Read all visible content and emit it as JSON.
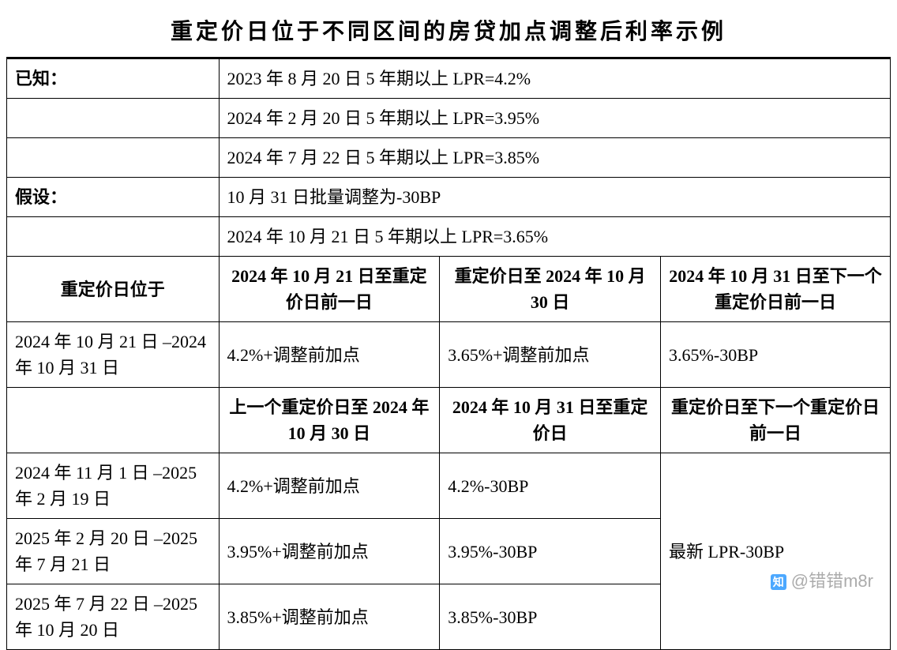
{
  "title": "重定价日位于不同区间的房贷加点调整后利率示例",
  "known": {
    "label": "已知：",
    "rows": [
      "2023 年 8 月 20 日 5 年期以上 LPR=4.2%",
      "2024 年 2 月 20 日 5 年期以上 LPR=3.95%",
      "2024 年 7 月 22 日 5 年期以上 LPR=3.85%"
    ]
  },
  "assume": {
    "label": "假设：",
    "rows": [
      "10 月 31 日批量调整为-30BP",
      "2024 年 10 月 21 日 5 年期以上 LPR=3.65%"
    ]
  },
  "section1": {
    "header": {
      "c1": "重定价日位于",
      "c2": "2024 年 10 月 21 日至重定价日前一日",
      "c3": "重定价日至 2024 年 10 月 30 日",
      "c4": "2024 年 10 月 31 日至下一个重定价日前一日"
    },
    "row1": {
      "c1": "2024 年 10 月 21 日 –2024 年 10 月 31 日",
      "c2": "4.2%+调整前加点",
      "c3": "3.65%+调整前加点",
      "c4": "3.65%-30BP"
    }
  },
  "section2": {
    "header": {
      "c2": "上一个重定价日至 2024 年 10 月 30 日",
      "c3": "2024 年 10 月 31 日至重定价日",
      "c4": "重定价日至下一个重定价日前一日"
    },
    "rows": [
      {
        "c1": "2024 年 11 月 1 日 –2025 年 2 月 19 日",
        "c2": "4.2%+调整前加点",
        "c3": "4.2%-30BP"
      },
      {
        "c1": "2025 年 2 月 20 日 –2025 年 7 月 21 日",
        "c2": "3.95%+调整前加点",
        "c3": "3.95%-30BP"
      },
      {
        "c1": "2025 年 7 月 22 日 –2025 年 10 月 20 日",
        "c2": "3.85%+调整前加点",
        "c3": "3.85%-30BP"
      }
    ],
    "merged_c4": "最新 LPR-30BP"
  },
  "watermark": "@错错m8r",
  "colors": {
    "text": "#000000",
    "border": "#000000",
    "background": "#ffffff",
    "watermark": "#888888",
    "zhihu_blue": "#0084ff"
  }
}
